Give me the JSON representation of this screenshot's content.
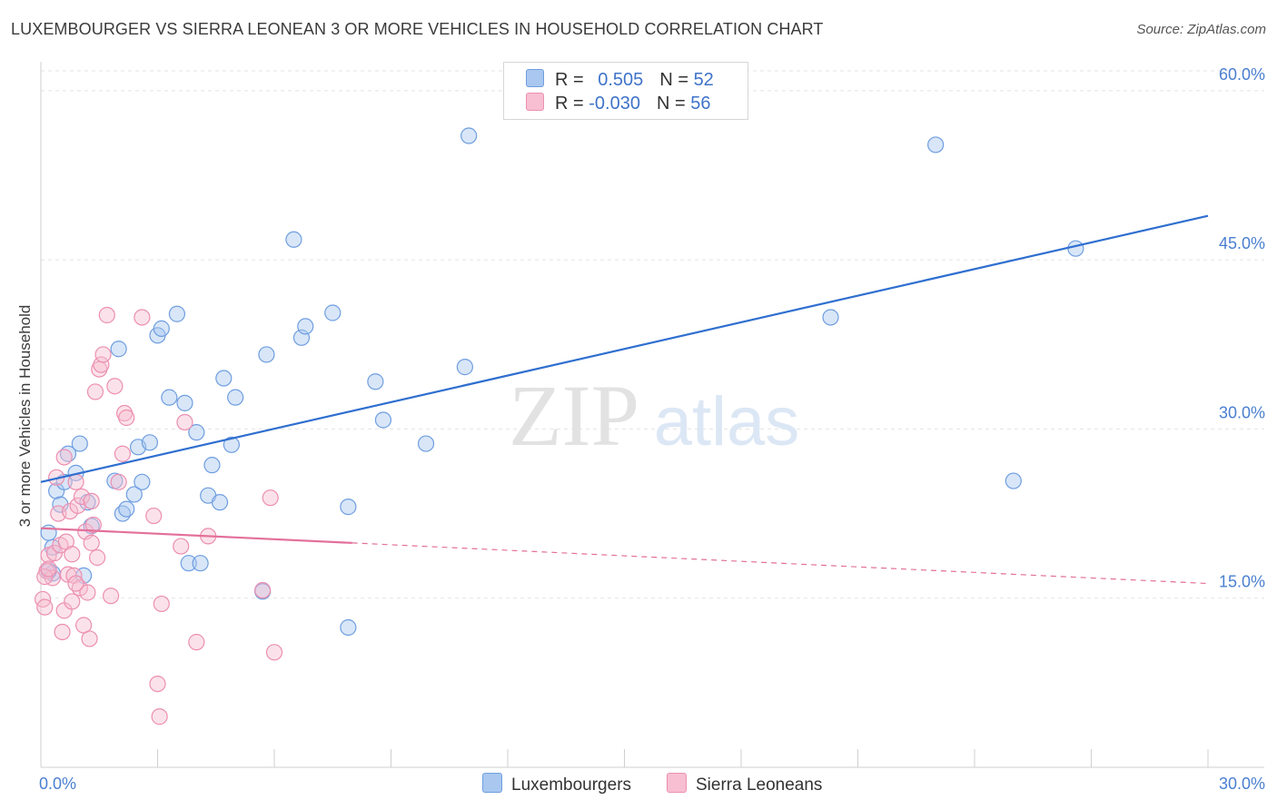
{
  "title": "LUXEMBOURGER VS SIERRA LEONEAN 3 OR MORE VEHICLES IN HOUSEHOLD CORRELATION CHART",
  "source": "Source: ZipAtlas.com",
  "watermark": {
    "zip": "ZIP",
    "atlas": "atlas"
  },
  "legend_top": [
    {
      "r_label": "R = ",
      "r_value": "0.505",
      "n_label": "N = ",
      "n_value": "52",
      "color": "#a9c7ef",
      "border": "#6f9ee0"
    },
    {
      "r_label": "R = ",
      "r_value": "-0.030",
      "n_label": "N = ",
      "n_value": "56",
      "color": "#f7bfd1",
      "border": "#ec8fb0"
    }
  ],
  "legend_bottom": [
    {
      "label": "Luxembourgers",
      "color": "#a9c7ef"
    },
    {
      "label": "Sierra Leoneans",
      "color": "#f7bfd1"
    }
  ],
  "chart_data": {
    "type": "scatter",
    "title": "LUXEMBOURGER VS SIERRA LEONEAN 3 OR MORE VEHICLES IN HOUSEHOLD CORRELATION CHART",
    "xlabel": "",
    "ylabel": "3 or more Vehicles in Household",
    "xlim": [
      0,
      30
    ],
    "ylim": [
      0,
      62
    ],
    "x_tick_labels": [
      "0.0%",
      "30.0%"
    ],
    "y_ticks": [
      15,
      30,
      45,
      60
    ],
    "y_tick_labels": [
      "15.0%",
      "30.0%",
      "45.0%",
      "60.0%"
    ],
    "grid": true,
    "series": [
      {
        "name": "Luxembourgers",
        "color": "#6f9ee0",
        "fill": "#a9c7ef",
        "trend": {
          "x": [
            0,
            30
          ],
          "y": [
            25.3,
            48.9
          ],
          "style": "solid",
          "color": "#2f6fcf"
        },
        "points": [
          [
            0.2,
            20.8
          ],
          [
            0.3,
            17.2
          ],
          [
            0.4,
            24.5
          ],
          [
            0.5,
            23.3
          ],
          [
            0.6,
            25.3
          ],
          [
            0.7,
            27.8
          ],
          [
            0.9,
            26.1
          ],
          [
            1.0,
            28.7
          ],
          [
            1.1,
            17.0
          ],
          [
            1.2,
            23.5
          ],
          [
            1.3,
            21.4
          ],
          [
            1.9,
            25.4
          ],
          [
            2.0,
            37.1
          ],
          [
            2.1,
            22.5
          ],
          [
            2.2,
            22.9
          ],
          [
            2.4,
            24.2
          ],
          [
            2.5,
            28.4
          ],
          [
            2.6,
            25.3
          ],
          [
            2.8,
            28.8
          ],
          [
            3.0,
            38.3
          ],
          [
            3.1,
            38.9
          ],
          [
            3.3,
            32.8
          ],
          [
            3.5,
            40.2
          ],
          [
            3.7,
            32.3
          ],
          [
            3.8,
            18.1
          ],
          [
            4.0,
            29.7
          ],
          [
            4.1,
            18.1
          ],
          [
            4.3,
            24.1
          ],
          [
            4.4,
            26.8
          ],
          [
            4.6,
            23.5
          ],
          [
            4.7,
            34.5
          ],
          [
            4.9,
            28.6
          ],
          [
            5.0,
            32.8
          ],
          [
            5.7,
            15.6
          ],
          [
            5.8,
            36.6
          ],
          [
            6.5,
            46.8
          ],
          [
            6.7,
            38.1
          ],
          [
            6.8,
            39.1
          ],
          [
            7.5,
            40.3
          ],
          [
            7.9,
            23.1
          ],
          [
            7.9,
            12.4
          ],
          [
            8.6,
            34.2
          ],
          [
            8.8,
            30.8
          ],
          [
            9.9,
            28.7
          ],
          [
            10.9,
            35.5
          ],
          [
            11.0,
            56.0
          ],
          [
            20.3,
            39.9
          ],
          [
            23.0,
            55.2
          ],
          [
            25.0,
            25.4
          ],
          [
            26.6,
            46.0
          ],
          [
            0.2,
            17.4
          ],
          [
            0.3,
            19.5
          ]
        ]
      },
      {
        "name": "Sierra Leoneans",
        "color": "#ec8fb0",
        "fill": "#f7bfd1",
        "trend": {
          "x": [
            0,
            8
          ],
          "y": [
            21.2,
            19.9
          ],
          "x_dashed_end": 30,
          "y_dashed_end": 16.3,
          "style": "solid-then-dashed",
          "color": "#e3709a"
        },
        "points": [
          [
            0.05,
            14.9
          ],
          [
            0.1,
            14.2
          ],
          [
            0.15,
            17.4
          ],
          [
            0.2,
            18.8
          ],
          [
            0.3,
            16.8
          ],
          [
            0.35,
            19.0
          ],
          [
            0.4,
            25.7
          ],
          [
            0.45,
            22.5
          ],
          [
            0.5,
            19.7
          ],
          [
            0.55,
            12.0
          ],
          [
            0.6,
            13.9
          ],
          [
            0.6,
            27.5
          ],
          [
            0.65,
            20.0
          ],
          [
            0.7,
            17.1
          ],
          [
            0.75,
            22.7
          ],
          [
            0.8,
            14.7
          ],
          [
            0.8,
            18.9
          ],
          [
            0.85,
            17.0
          ],
          [
            0.9,
            25.3
          ],
          [
            0.95,
            23.2
          ],
          [
            1.0,
            15.9
          ],
          [
            1.05,
            24.0
          ],
          [
            1.1,
            12.6
          ],
          [
            1.15,
            20.9
          ],
          [
            1.2,
            15.5
          ],
          [
            1.25,
            11.4
          ],
          [
            1.3,
            23.6
          ],
          [
            1.35,
            21.5
          ],
          [
            1.4,
            33.3
          ],
          [
            1.45,
            18.6
          ],
          [
            1.5,
            35.3
          ],
          [
            1.55,
            35.7
          ],
          [
            1.6,
            36.6
          ],
          [
            1.7,
            40.1
          ],
          [
            1.8,
            15.2
          ],
          [
            1.9,
            33.8
          ],
          [
            2.0,
            25.3
          ],
          [
            2.1,
            27.8
          ],
          [
            2.15,
            31.4
          ],
          [
            2.2,
            31.0
          ],
          [
            2.6,
            39.9
          ],
          [
            2.9,
            22.3
          ],
          [
            3.0,
            7.4
          ],
          [
            3.05,
            4.5
          ],
          [
            3.1,
            14.5
          ],
          [
            3.6,
            19.6
          ],
          [
            3.7,
            30.6
          ],
          [
            4.0,
            11.1
          ],
          [
            4.3,
            20.5
          ],
          [
            5.7,
            15.7
          ],
          [
            5.9,
            23.9
          ],
          [
            6.0,
            10.2
          ],
          [
            0.1,
            16.9
          ],
          [
            0.2,
            17.6
          ],
          [
            0.9,
            16.3
          ],
          [
            1.3,
            19.9
          ]
        ]
      }
    ]
  }
}
